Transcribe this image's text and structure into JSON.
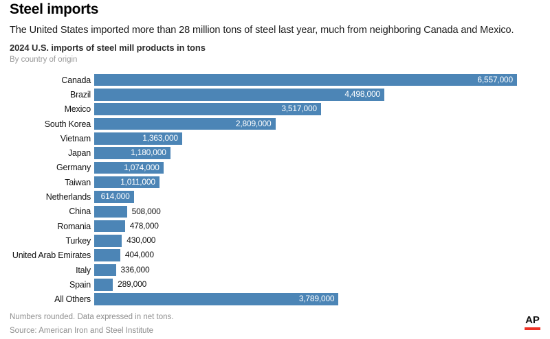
{
  "header": {
    "title": "Steel imports",
    "intro": "The United States imported more than 28 million tons of steel last year, much from neighboring Canada and Mexico."
  },
  "chart_data": {
    "type": "bar",
    "orientation": "horizontal",
    "title": "2024 U.S. imports of steel mill products in tons",
    "subtitle": "By country of origin",
    "categories": [
      "Canada",
      "Brazil",
      "Mexico",
      "South Korea",
      "Vietnam",
      "Japan",
      "Germany",
      "Taiwan",
      "Netherlands",
      "China",
      "Romania",
      "Turkey",
      "United Arab Emirates",
      "Italy",
      "Spain",
      "All Others"
    ],
    "values": [
      6557000,
      4498000,
      3517000,
      2809000,
      1363000,
      1180000,
      1074000,
      1011000,
      614000,
      508000,
      478000,
      430000,
      404000,
      336000,
      289000,
      3789000
    ],
    "value_labels": [
      "6,557,000",
      "4,498,000",
      "3,517,000",
      "2,809,000",
      "1,363,000",
      "1,180,000",
      "1,074,000",
      "1,011,000",
      "614,000",
      "508,000",
      "478,000",
      "430,000",
      "404,000",
      "336,000",
      "289,000",
      "3,789,000"
    ],
    "xlim": [
      0,
      6557000
    ],
    "bar_color": "#4c85b6",
    "grid": false,
    "legend": null,
    "value_label_inside_color": "#ffffff",
    "value_label_outside_color": "#111111"
  },
  "footer": {
    "note": "Numbers rounded. Data expressed in net tons.",
    "source": "Source: American Iron and Steel Institute"
  },
  "logo": {
    "text": "AP",
    "underline_color": "#ee3124"
  },
  "colors": {
    "background": "#ffffff",
    "bar": "#4c85b6",
    "title_text": "#000000",
    "muted_text": "#8e8e8e"
  }
}
